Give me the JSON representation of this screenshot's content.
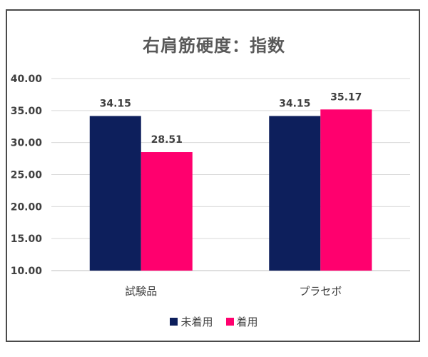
{
  "chart_data": {
    "type": "bar",
    "title": "右肩筋硬度：指数",
    "categories": [
      "試験品",
      "プラセボ"
    ],
    "series": [
      {
        "name": "未着用",
        "values": [
          34.15,
          34.15
        ],
        "labels": [
          "34.15",
          "34.15"
        ],
        "color": "#0d1f5c"
      },
      {
        "name": "着用",
        "values": [
          28.51,
          35.17
        ],
        "labels": [
          "28.51",
          "35.17"
        ],
        "color": "#ff006e"
      }
    ],
    "ylim": [
      10,
      40
    ],
    "yticks": [
      "10.00",
      "15.00",
      "20.00",
      "25.00",
      "30.00",
      "35.00",
      "40.00"
    ],
    "grid": true,
    "legend_position": "bottom"
  }
}
